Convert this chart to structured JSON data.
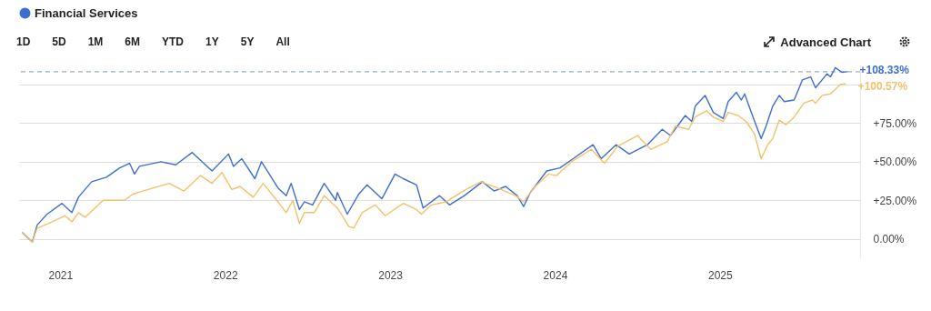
{
  "chart_data": {
    "type": "line",
    "legend": "top left",
    "grid": "y",
    "line_style": "solid",
    "xlim": [
      2020.75,
      2025.85
    ],
    "xticks": [
      2021,
      2022,
      2023,
      2024,
      2025
    ],
    "ylim": [
      -12,
      113
    ],
    "yticks": [
      {
        "value": 0,
        "label": "0.00%"
      },
      {
        "value": 25,
        "label": "+25.00%"
      },
      {
        "value": 50,
        "label": "+50.00%"
      },
      {
        "value": 75,
        "label": "+75.00%"
      },
      {
        "value": 100,
        "label": null
      }
    ],
    "ref_lines": [
      {
        "axis": "y",
        "value": 108.33,
        "line_style": "dashed",
        "color": "#7f9aa8"
      }
    ],
    "annotations": [
      "1D",
      "5D",
      "1M",
      "6M",
      "YTD",
      "1Y",
      "5Y",
      "All",
      "Advanced Chart"
    ],
    "series": [
      {
        "name": "Financial Services",
        "color": "#3d6fd1",
        "x": [
          2020.77,
          2020.83,
          2020.86,
          2020.92,
          2021.01,
          2021.07,
          2021.11,
          2021.19,
          2021.28,
          2021.36,
          2021.42,
          2021.45,
          2021.48,
          2021.61,
          2021.7,
          2021.8,
          2021.92,
          2022.02,
          2022.05,
          2022.1,
          2022.18,
          2022.22,
          2022.32,
          2022.37,
          2022.4,
          2022.45,
          2022.48,
          2022.53,
          2022.6,
          2022.67,
          2022.68,
          2022.74,
          2022.81,
          2022.86,
          2022.95,
          2023.03,
          2023.08,
          2023.16,
          2023.2,
          2023.3,
          2023.36,
          2023.45,
          2023.56,
          2023.63,
          2023.7,
          2023.77,
          2023.81,
          2023.85,
          2023.95,
          2024.03,
          2024.11,
          2024.23,
          2024.28,
          2024.37,
          2024.45,
          2024.56,
          2024.65,
          2024.7,
          2024.79,
          2024.83,
          2024.85,
          2024.91,
          2024.96,
          2025.02,
          2025.05,
          2025.1,
          2025.13,
          2025.15,
          2025.19,
          2025.25,
          2025.28,
          2025.32,
          2025.36,
          2025.39,
          2025.45,
          2025.5,
          2025.55,
          2025.58,
          2025.65,
          2025.67,
          2025.7,
          2025.74,
          2025.77
        ],
        "values": [
          4,
          -2,
          9,
          16,
          23,
          17,
          27,
          37,
          40,
          46,
          49,
          42,
          47,
          50,
          48,
          56,
          44,
          55,
          47,
          52,
          39,
          50,
          33,
          28,
          36,
          19,
          24,
          22,
          36,
          25,
          30,
          16,
          29,
          35,
          26,
          42,
          39,
          35,
          20,
          28,
          22,
          28,
          37,
          31,
          34,
          28,
          21,
          30,
          44,
          46,
          52,
          61,
          52,
          61,
          55,
          61,
          71,
          67,
          80,
          76,
          86,
          93,
          82,
          78,
          89,
          95,
          90,
          94,
          82,
          65,
          73,
          86,
          93,
          89,
          90,
          103,
          105,
          98,
          107,
          105,
          111,
          108,
          108.33
        ],
        "value_labels": [
          null,
          null,
          null,
          null,
          null,
          null,
          null,
          null,
          null,
          null,
          null,
          null,
          null,
          null,
          null,
          null,
          null,
          null,
          null,
          null,
          null,
          null,
          null,
          null,
          null,
          null,
          null,
          null,
          null,
          null,
          null,
          null,
          null,
          null,
          null,
          null,
          null,
          null,
          null,
          null,
          null,
          null,
          null,
          null,
          null,
          null,
          null,
          null,
          null,
          null,
          null,
          null,
          null,
          null,
          null,
          null,
          null,
          null,
          null,
          null,
          null,
          null,
          null,
          null,
          null,
          null,
          null,
          null,
          null,
          null,
          null,
          null,
          null,
          null,
          null,
          null,
          null,
          null,
          null,
          null,
          null,
          null,
          "+108.33%"
        ]
      },
      {
        "color": "#f2c26b",
        "x": [
          2020.77,
          2020.83,
          2020.86,
          2020.93,
          2021.03,
          2021.07,
          2021.11,
          2021.15,
          2021.26,
          2021.39,
          2021.44,
          2021.5,
          2021.66,
          2021.75,
          2021.85,
          2021.92,
          2021.98,
          2022.04,
          2022.09,
          2022.17,
          2022.23,
          2022.32,
          2022.37,
          2022.41,
          2022.45,
          2022.48,
          2022.54,
          2022.6,
          2022.68,
          2022.75,
          2022.78,
          2022.83,
          2022.91,
          2022.97,
          2023.08,
          2023.16,
          2023.19,
          2023.25,
          2023.34,
          2023.46,
          2023.55,
          2023.65,
          2023.76,
          2023.81,
          2023.87,
          2023.96,
          2024.01,
          2024.1,
          2024.22,
          2024.3,
          2024.38,
          2024.5,
          2024.58,
          2024.68,
          2024.73,
          2024.81,
          2024.85,
          2024.92,
          2024.96,
          2025.02,
          2025.05,
          2025.11,
          2025.16,
          2025.21,
          2025.25,
          2025.29,
          2025.32,
          2025.36,
          2025.4,
          2025.45,
          2025.51,
          2025.56,
          2025.58,
          2025.62,
          2025.67,
          2025.73,
          2025.76
        ],
        "values": [
          4,
          -2,
          7,
          10,
          15,
          11,
          17,
          14,
          25,
          25,
          29,
          31,
          36,
          31,
          41,
          36,
          43,
          32,
          34,
          27,
          36,
          24,
          17,
          25,
          10,
          17,
          17,
          28,
          20,
          8,
          7,
          17,
          22,
          15,
          23,
          19,
          16,
          22,
          24,
          32,
          37,
          33,
          28,
          24,
          33,
          42,
          41,
          50,
          58,
          49,
          60,
          67,
          58,
          63,
          73,
          71,
          79,
          83,
          79,
          76,
          82,
          80,
          76,
          68,
          52,
          61,
          65,
          77,
          74,
          79,
          88,
          90,
          88,
          93,
          94,
          100,
          100.57
        ],
        "value_labels": [
          null,
          null,
          null,
          null,
          null,
          null,
          null,
          null,
          null,
          null,
          null,
          null,
          null,
          null,
          null,
          null,
          null,
          null,
          null,
          null,
          null,
          null,
          null,
          null,
          null,
          null,
          null,
          null,
          null,
          null,
          null,
          null,
          null,
          null,
          null,
          null,
          null,
          null,
          null,
          null,
          null,
          null,
          null,
          null,
          null,
          null,
          null,
          null,
          null,
          null,
          null,
          null,
          null,
          null,
          null,
          null,
          null,
          null,
          null,
          null,
          null,
          null,
          null,
          null,
          null,
          null,
          null,
          null,
          null,
          null,
          null,
          null,
          null,
          null,
          null,
          null,
          "+100.57%"
        ]
      }
    ]
  }
}
